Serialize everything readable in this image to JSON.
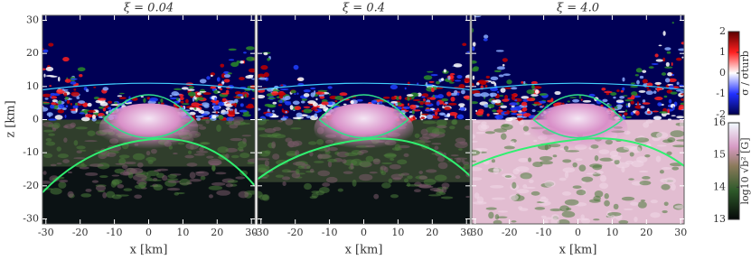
{
  "chart_data": {
    "type": "heatmap",
    "panels": [
      {
        "title": "ξ = 0.04"
      },
      {
        "title": "ξ = 0.4"
      },
      {
        "title": "ξ = 4.0"
      }
    ],
    "xlabel": "x [km]",
    "ylabel": "z [km]",
    "xlim": [
      -31,
      31
    ],
    "ylim": [
      -31.5,
      31.5
    ],
    "xticks": [
      -30,
      -20,
      -10,
      0,
      10,
      20,
      30
    ],
    "yticks": [
      -30,
      -20,
      -10,
      0,
      10,
      20,
      30
    ],
    "colorbars": [
      {
        "label": "σ / σturb",
        "lim": [
          -2,
          2
        ],
        "ticks": [
          -2,
          -1,
          0,
          1,
          2
        ]
      },
      {
        "label": "log10 √b² [G]",
        "lim": [
          13,
          16
        ],
        "ticks": [
          13,
          14,
          15,
          16
        ]
      }
    ]
  }
}
